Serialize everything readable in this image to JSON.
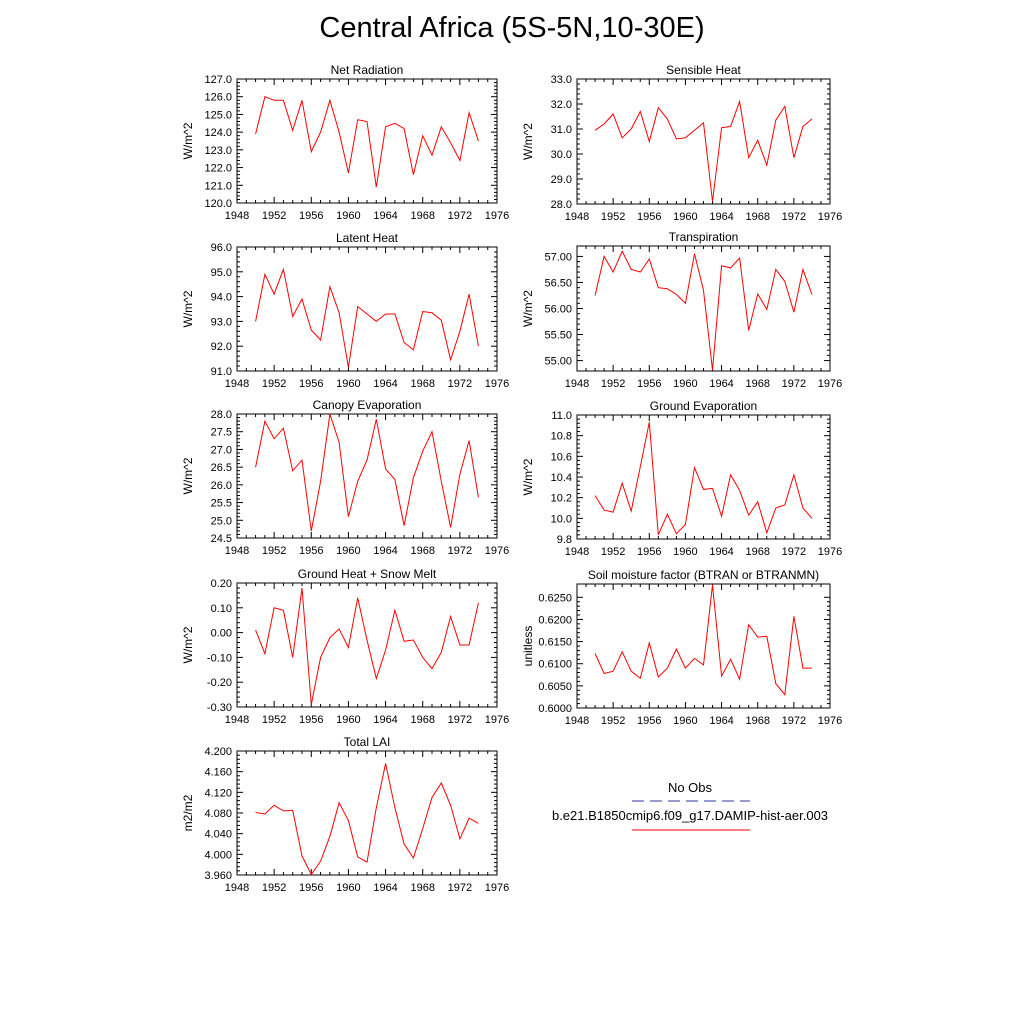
{
  "title": "Central Africa (5S-5N,10-30E)",
  "colors": {
    "model": "#ff0000",
    "obs": "#3333aa",
    "axis": "#000000"
  },
  "legend": {
    "obs_label": "No Obs",
    "model_label": "b.e21.B1850cmip6.f09_g17.DAMIP-hist-aer.003"
  },
  "chart_data": [
    {
      "type": "line",
      "title": "Net Radiation",
      "ylabel": "W/m^2",
      "xlim": [
        1948,
        1976
      ],
      "xticks": [
        1948,
        1952,
        1956,
        1960,
        1964,
        1968,
        1972,
        1976
      ],
      "ylim": [
        120,
        127
      ],
      "yticks": [
        120,
        121,
        122,
        123,
        124,
        125,
        126,
        127
      ],
      "ydec": 1,
      "x": [
        1950,
        1951,
        1952,
        1953,
        1954,
        1955,
        1956,
        1957,
        1958,
        1959,
        1960,
        1961,
        1962,
        1963,
        1964,
        1965,
        1966,
        1967,
        1968,
        1969,
        1970,
        1971,
        1972,
        1973,
        1974
      ],
      "series": [
        {
          "values": [
            123.9,
            126.0,
            125.8,
            125.8,
            124.1,
            125.8,
            122.9,
            124.0,
            125.8,
            124.0,
            121.7,
            124.7,
            124.6,
            120.9,
            124.3,
            124.5,
            124.2,
            121.6,
            123.8,
            122.7,
            124.3,
            123.4,
            122.4,
            125.1,
            123.5
          ]
        }
      ]
    },
    {
      "type": "line",
      "title": "Sensible Heat",
      "ylabel": "W/m^2",
      "xlim": [
        1948,
        1976
      ],
      "xticks": [
        1948,
        1952,
        1956,
        1960,
        1964,
        1968,
        1972,
        1976
      ],
      "ylim": [
        28,
        33
      ],
      "yticks": [
        28,
        29,
        30,
        31,
        32,
        33
      ],
      "ydec": 1,
      "x": [
        1950,
        1951,
        1952,
        1953,
        1954,
        1955,
        1956,
        1957,
        1958,
        1959,
        1960,
        1961,
        1962,
        1963,
        1964,
        1965,
        1966,
        1967,
        1968,
        1969,
        1970,
        1971,
        1972,
        1973,
        1974
      ],
      "series": [
        {
          "values": [
            30.95,
            31.2,
            31.6,
            30.65,
            31.0,
            31.7,
            30.5,
            31.85,
            31.4,
            30.6,
            30.65,
            30.95,
            31.25,
            28.1,
            31.05,
            31.1,
            32.1,
            29.85,
            30.55,
            29.55,
            31.35,
            31.9,
            29.85,
            31.1,
            31.4
          ]
        }
      ]
    },
    {
      "type": "line",
      "title": "Latent Heat",
      "ylabel": "W/m^2",
      "xlim": [
        1948,
        1976
      ],
      "xticks": [
        1948,
        1952,
        1956,
        1960,
        1964,
        1968,
        1972,
        1976
      ],
      "ylim": [
        91,
        96
      ],
      "yticks": [
        91,
        92,
        93,
        94,
        95,
        96
      ],
      "ydec": 1,
      "x": [
        1950,
        1951,
        1952,
        1953,
        1954,
        1955,
        1956,
        1957,
        1958,
        1959,
        1960,
        1961,
        1962,
        1963,
        1964,
        1965,
        1966,
        1967,
        1968,
        1969,
        1970,
        1971,
        1972,
        1973,
        1974
      ],
      "series": [
        {
          "values": [
            93.0,
            94.9,
            94.1,
            95.1,
            93.2,
            93.9,
            92.65,
            92.25,
            94.4,
            93.35,
            91.15,
            93.6,
            93.3,
            93.0,
            93.3,
            93.3,
            92.15,
            91.85,
            93.4,
            93.35,
            93.05,
            91.45,
            92.6,
            94.1,
            92.0
          ]
        }
      ]
    },
    {
      "type": "line",
      "title": "Transpiration",
      "ylabel": "W/m^2",
      "xlim": [
        1948,
        1976
      ],
      "xticks": [
        1948,
        1952,
        1956,
        1960,
        1964,
        1968,
        1972,
        1976
      ],
      "ylim": [
        54.8,
        57.2
      ],
      "yticks": [
        55,
        55.5,
        56,
        56.5,
        57
      ],
      "ydec": 2,
      "x": [
        1950,
        1951,
        1952,
        1953,
        1954,
        1955,
        1956,
        1957,
        1958,
        1959,
        1960,
        1961,
        1962,
        1963,
        1964,
        1965,
        1966,
        1967,
        1968,
        1969,
        1970,
        1971,
        1972,
        1973,
        1974
      ],
      "series": [
        {
          "values": [
            56.25,
            57.0,
            56.7,
            57.1,
            56.75,
            56.7,
            56.95,
            56.4,
            56.38,
            56.27,
            56.1,
            57.05,
            56.35,
            54.82,
            56.82,
            56.78,
            56.97,
            55.58,
            56.28,
            55.98,
            56.75,
            56.52,
            55.93,
            56.75,
            56.27
          ]
        }
      ]
    },
    {
      "type": "line",
      "title": "Canopy Evaporation",
      "ylabel": "W/m^2",
      "xlim": [
        1948,
        1976
      ],
      "xticks": [
        1948,
        1952,
        1956,
        1960,
        1964,
        1968,
        1972,
        1976
      ],
      "ylim": [
        24.5,
        28
      ],
      "yticks": [
        24.5,
        25,
        25.5,
        26,
        26.5,
        27,
        27.5,
        28
      ],
      "ydec": 1,
      "x": [
        1950,
        1951,
        1952,
        1953,
        1954,
        1955,
        1956,
        1957,
        1958,
        1959,
        1960,
        1961,
        1962,
        1963,
        1964,
        1965,
        1966,
        1967,
        1968,
        1969,
        1970,
        1971,
        1972,
        1973,
        1974
      ],
      "series": [
        {
          "values": [
            26.5,
            27.8,
            27.3,
            27.6,
            26.4,
            26.7,
            24.7,
            26.1,
            28.0,
            27.2,
            25.1,
            26.1,
            26.7,
            27.85,
            26.45,
            26.15,
            24.85,
            26.2,
            26.95,
            27.5,
            26.1,
            24.8,
            26.3,
            27.25,
            25.65
          ]
        }
      ]
    },
    {
      "type": "line",
      "title": "Ground Evaporation",
      "ylabel": "W/m^2",
      "xlim": [
        1948,
        1976
      ],
      "xticks": [
        1948,
        1952,
        1956,
        1960,
        1964,
        1968,
        1972,
        1976
      ],
      "ylim": [
        9.8,
        11.0
      ],
      "yticks": [
        9.8,
        10.0,
        10.2,
        10.4,
        10.6,
        10.8,
        11.0
      ],
      "ydec": 1,
      "x": [
        1950,
        1951,
        1952,
        1953,
        1954,
        1955,
        1956,
        1957,
        1958,
        1959,
        1960,
        1961,
        1962,
        1963,
        1964,
        1965,
        1966,
        1967,
        1968,
        1969,
        1970,
        1971,
        1972,
        1973,
        1974
      ],
      "series": [
        {
          "values": [
            10.22,
            10.08,
            10.06,
            10.34,
            10.07,
            10.5,
            10.93,
            9.84,
            10.04,
            9.85,
            9.94,
            10.49,
            10.28,
            10.29,
            10.02,
            10.42,
            10.27,
            10.03,
            10.16,
            9.86,
            10.1,
            10.13,
            10.42,
            10.1,
            10.0
          ]
        }
      ]
    },
    {
      "type": "line",
      "title": "Ground Heat + Snow Melt",
      "ylabel": "W/m^2",
      "xlim": [
        1948,
        1976
      ],
      "xticks": [
        1948,
        1952,
        1956,
        1960,
        1964,
        1968,
        1972,
        1976
      ],
      "ylim": [
        -0.3,
        0.2
      ],
      "yticks": [
        -0.3,
        -0.2,
        -0.1,
        0,
        0.1,
        0.2
      ],
      "ydec": 2,
      "x": [
        1950,
        1951,
        1952,
        1953,
        1954,
        1955,
        1956,
        1957,
        1958,
        1959,
        1960,
        1961,
        1962,
        1963,
        1964,
        1965,
        1966,
        1967,
        1968,
        1969,
        1970,
        1971,
        1972,
        1973,
        1974
      ],
      "series": [
        {
          "values": [
            0.01,
            -0.085,
            0.1,
            0.09,
            -0.1,
            0.18,
            -0.29,
            -0.1,
            -0.02,
            0.015,
            -0.06,
            0.14,
            -0.03,
            -0.185,
            -0.07,
            0.09,
            -0.035,
            -0.03,
            -0.1,
            -0.145,
            -0.08,
            0.065,
            -0.05,
            -0.05,
            0.12
          ]
        }
      ]
    },
    {
      "type": "line",
      "title": "Soil moisture factor (BTRAN or BTRANMN)",
      "ylabel": "unitless",
      "xlim": [
        1948,
        1976
      ],
      "xticks": [
        1948,
        1952,
        1956,
        1960,
        1964,
        1968,
        1972,
        1976
      ],
      "ylim": [
        0.6,
        0.628
      ],
      "yticks": [
        0.6,
        0.605,
        0.61,
        0.615,
        0.62,
        0.625
      ],
      "ydec": 4,
      "x": [
        1950,
        1951,
        1952,
        1953,
        1954,
        1955,
        1956,
        1957,
        1958,
        1959,
        1960,
        1961,
        1962,
        1963,
        1964,
        1965,
        1966,
        1967,
        1968,
        1969,
        1970,
        1971,
        1972,
        1973,
        1974
      ],
      "series": [
        {
          "values": [
            0.6123,
            0.6078,
            0.6083,
            0.6127,
            0.6083,
            0.6067,
            0.6147,
            0.607,
            0.609,
            0.6133,
            0.609,
            0.6112,
            0.6097,
            0.6278,
            0.6072,
            0.611,
            0.6065,
            0.6188,
            0.616,
            0.6162,
            0.6055,
            0.603,
            0.6207,
            0.609,
            0.609
          ]
        }
      ]
    },
    {
      "type": "line",
      "title": "Total LAI",
      "ylabel": "m2/m2",
      "xlim": [
        1948,
        1976
      ],
      "xticks": [
        1948,
        1952,
        1956,
        1960,
        1964,
        1968,
        1972,
        1976
      ],
      "ylim": [
        3.96,
        4.2
      ],
      "yticks": [
        3.96,
        4.0,
        4.04,
        4.08,
        4.12,
        4.16,
        4.2
      ],
      "ydec": 3,
      "x": [
        1950,
        1951,
        1952,
        1953,
        1954,
        1955,
        1956,
        1957,
        1958,
        1959,
        1960,
        1961,
        1962,
        1963,
        1964,
        1965,
        1966,
        1967,
        1968,
        1969,
        1970,
        1971,
        1972,
        1973,
        1974
      ],
      "series": [
        {
          "values": [
            4.081,
            4.078,
            4.095,
            4.084,
            4.085,
            3.997,
            3.961,
            3.987,
            4.035,
            4.1,
            4.065,
            3.995,
            3.985,
            4.09,
            4.176,
            4.09,
            4.02,
            3.993,
            4.05,
            4.11,
            4.138,
            4.095,
            4.03,
            4.07,
            4.06
          ]
        }
      ]
    }
  ]
}
